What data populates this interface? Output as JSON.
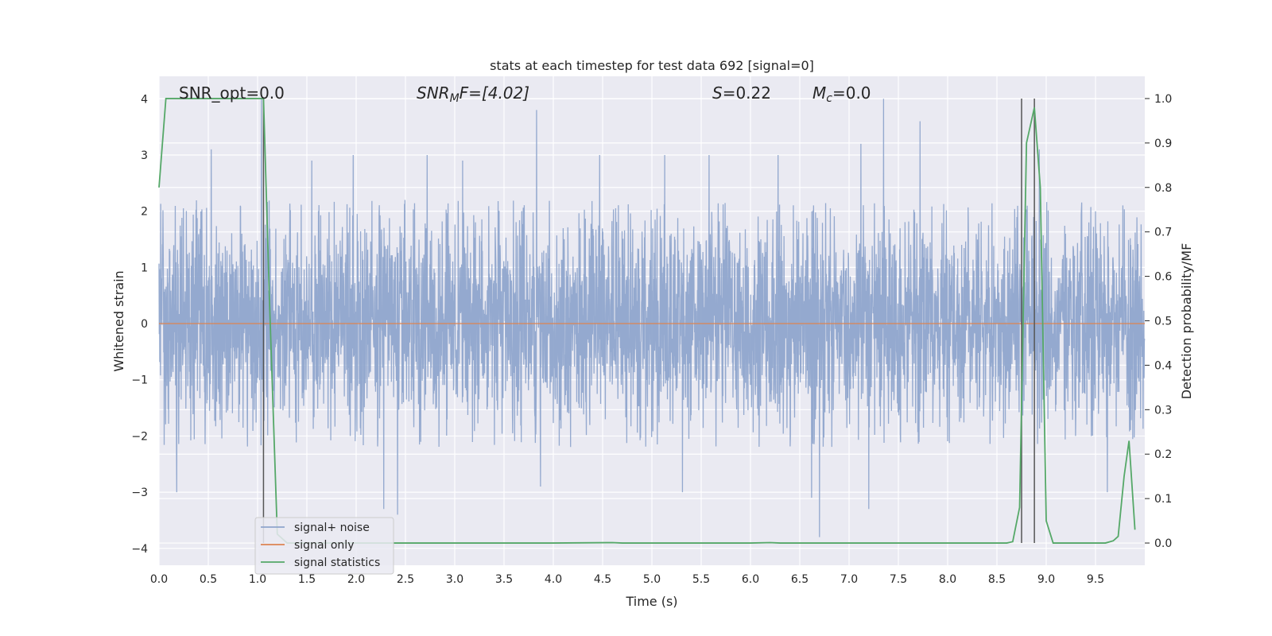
{
  "chart_data": {
    "type": "line",
    "title": "stats at each timestep for test data 692 [signal=0]",
    "xlabel": "Time (s)",
    "ylabel_left": "Whitened strain",
    "ylabel_right": "Detection probability/MF",
    "xlim": [
      0.0,
      10.0
    ],
    "ylim_left": [
      -4.3,
      4.4
    ],
    "ylim_right": [
      -0.05,
      1.05
    ],
    "x_ticks": [
      "0.0",
      "0.5",
      "1.0",
      "1.5",
      "2.0",
      "2.5",
      "3.0",
      "3.5",
      "4.0",
      "4.5",
      "5.0",
      "5.5",
      "6.0",
      "6.5",
      "7.0",
      "7.5",
      "8.0",
      "8.5",
      "9.0",
      "9.5"
    ],
    "y_ticks_left": [
      "4",
      "3",
      "2",
      "1",
      "0",
      "−1",
      "−2",
      "−3",
      "−4"
    ],
    "y_ticks_right": [
      "1.0",
      "0.9",
      "0.8",
      "0.7",
      "0.6",
      "0.5",
      "0.4",
      "0.3",
      "0.2",
      "0.1",
      "0.0"
    ],
    "grid": true,
    "annotations": {
      "snr_opt": "SNR_opt=0.0",
      "snr_mf_main": "SNR",
      "snr_mf_sub": "M",
      "snr_mf_tail": "F=[4.02]",
      "s_italic": "S",
      "s_value": "=0.22",
      "mc_main": "M",
      "mc_sub": "c",
      "mc_value": "=0.0"
    },
    "legend": {
      "placement": "lower-left",
      "entries": [
        "signal+ noise",
        "signal only",
        "signal statistics"
      ]
    },
    "colors": {
      "noise": "#8fa5cc",
      "signal": "#dd8452",
      "stats": "#55a868",
      "vline": "#555555",
      "background": "#eaeaf2"
    },
    "noise": {
      "sample_rate": 400,
      "envelope_upper": 2.2,
      "envelope_lower": -2.2,
      "spikes": [
        {
          "t": 0.53,
          "v": 3.1
        },
        {
          "t": 1.04,
          "v": 4.0
        },
        {
          "t": 1.55,
          "v": 2.9
        },
        {
          "t": 1.97,
          "v": 3.0
        },
        {
          "t": 2.72,
          "v": 3.0
        },
        {
          "t": 3.08,
          "v": 2.9
        },
        {
          "t": 3.83,
          "v": 3.8
        },
        {
          "t": 4.47,
          "v": 3.0
        },
        {
          "t": 5.13,
          "v": 3.0
        },
        {
          "t": 5.58,
          "v": 3.0
        },
        {
          "t": 6.28,
          "v": 3.0
        },
        {
          "t": 7.12,
          "v": 3.2
        },
        {
          "t": 7.35,
          "v": 4.0
        },
        {
          "t": 7.72,
          "v": 3.6
        },
        {
          "t": 8.93,
          "v": 3.1
        },
        {
          "t": 0.18,
          "v": -3.0
        },
        {
          "t": 2.28,
          "v": -3.3
        },
        {
          "t": 2.42,
          "v": -3.4
        },
        {
          "t": 5.31,
          "v": -3.0
        },
        {
          "t": 6.62,
          "v": -3.1
        },
        {
          "t": 6.7,
          "v": -3.8
        },
        {
          "t": 7.2,
          "v": -3.3
        },
        {
          "t": 9.62,
          "v": -3.0
        },
        {
          "t": 3.87,
          "v": -2.9
        }
      ]
    },
    "signal_only": {
      "value": 0.0
    },
    "stats_series": {
      "x": [
        0.0,
        0.07,
        0.12,
        0.2,
        0.5,
        0.8,
        1.0,
        1.06,
        1.12,
        1.2,
        1.3,
        2.0,
        4.0,
        4.6,
        4.7,
        5.0,
        6.0,
        6.2,
        6.3,
        7.0,
        8.0,
        8.6,
        8.66,
        8.73,
        8.8,
        8.88,
        8.94,
        9.0,
        9.07,
        9.2,
        9.5,
        9.6,
        9.68,
        9.73,
        9.79,
        9.84,
        9.9
      ],
      "y": [
        0.8,
        1.0,
        1.0,
        1.0,
        1.0,
        1.0,
        1.0,
        1.0,
        0.55,
        0.02,
        0.0,
        0.0,
        0.0,
        0.001,
        0.0,
        0.0,
        0.0,
        0.001,
        0.0,
        0.0,
        0.0,
        0.0,
        0.003,
        0.08,
        0.9,
        0.98,
        0.8,
        0.05,
        0.0,
        0.0,
        0.0,
        0.0,
        0.005,
        0.015,
        0.15,
        0.23,
        0.03
      ]
    },
    "vlines": [
      1.06,
      8.75,
      8.88
    ]
  }
}
